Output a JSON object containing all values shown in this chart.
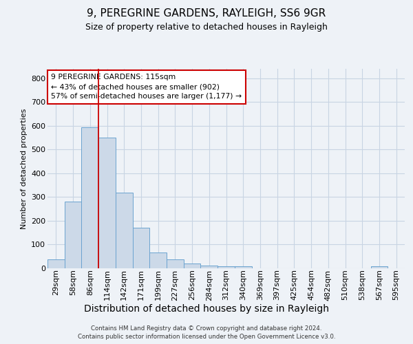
{
  "title1": "9, PEREGRINE GARDENS, RAYLEIGH, SS6 9GR",
  "title2": "Size of property relative to detached houses in Rayleigh",
  "xlabel": "Distribution of detached houses by size in Rayleigh",
  "ylabel": "Number of detached properties",
  "categories": [
    "29sqm",
    "58sqm",
    "86sqm",
    "114sqm",
    "142sqm",
    "171sqm",
    "199sqm",
    "227sqm",
    "256sqm",
    "284sqm",
    "312sqm",
    "340sqm",
    "369sqm",
    "397sqm",
    "425sqm",
    "454sqm",
    "482sqm",
    "510sqm",
    "538sqm",
    "567sqm",
    "595sqm"
  ],
  "values": [
    38,
    280,
    595,
    550,
    320,
    170,
    68,
    38,
    20,
    13,
    10,
    10,
    0,
    0,
    0,
    0,
    0,
    0,
    0,
    8,
    0
  ],
  "bar_color": "#ccd9e8",
  "bar_edge_color": "#6ba3d0",
  "grid_color": "#c8d4e3",
  "bg_color": "#eef2f7",
  "property_sqm": 115,
  "pct_smaller": 43,
  "n_smaller": 902,
  "pct_larger_semi": 57,
  "n_larger_semi": 1177,
  "annotation_box_color": "#cc0000",
  "red_line_index": 3,
  "ylim": [
    0,
    840
  ],
  "yticks": [
    0,
    100,
    200,
    300,
    400,
    500,
    600,
    700,
    800
  ],
  "title1_fontsize": 11,
  "title2_fontsize": 9,
  "xlabel_fontsize": 10,
  "ylabel_fontsize": 8,
  "tick_fontsize": 8,
  "footer1": "Contains HM Land Registry data © Crown copyright and database right 2024.",
  "footer2": "Contains public sector information licensed under the Open Government Licence v3.0."
}
